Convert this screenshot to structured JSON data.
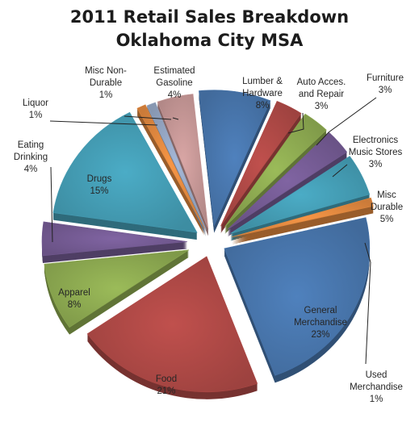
{
  "chart_data": {
    "type": "pie",
    "title_lines": [
      "2011 Retail Sales Breakdown",
      "Oklahoma City MSA"
    ],
    "slices": [
      {
        "label": "Lumber &\nHardware",
        "pct_label": "8%",
        "value": 8,
        "color": "#4f81bd"
      },
      {
        "label": "Auto Acces.\nand Repair",
        "pct_label": "3%",
        "value": 3,
        "color": "#c0504d"
      },
      {
        "label": "Furniture",
        "pct_label": "3%",
        "value": 3,
        "color": "#9bbb59"
      },
      {
        "label": "Electronics\nMusic Stores",
        "pct_label": "3%",
        "value": 3,
        "color": "#8064a2"
      },
      {
        "label": "Misc\nDurable",
        "pct_label": "5%",
        "value": 5,
        "color": "#4bacc6"
      },
      {
        "label": "Used\nMerchandise",
        "pct_label": "1%",
        "value": 1,
        "color": "#f79646"
      },
      {
        "label": "General\nMerchandise",
        "pct_label": "23%",
        "value": 23,
        "color": "#4f81bd"
      },
      {
        "label": "Food",
        "pct_label": "21%",
        "value": 21,
        "color": "#c0504d"
      },
      {
        "label": "Apparel",
        "pct_label": "8%",
        "value": 8,
        "color": "#9bbb59"
      },
      {
        "label": "Eating\nDrinking",
        "pct_label": "4%",
        "value": 4,
        "color": "#8064a2"
      },
      {
        "label": "Drugs",
        "pct_label": "15%",
        "value": 15,
        "color": "#4bacc6"
      },
      {
        "label": "Liquor",
        "pct_label": "1%",
        "value": 1,
        "color": "#f79646"
      },
      {
        "label": "Misc Non-\nDurable",
        "pct_label": "1%",
        "value": 1,
        "color": "#a5b8d8"
      },
      {
        "label": "Estimated\nGasoline",
        "pct_label": "4%",
        "value": 4,
        "color": "#d9a6a5"
      }
    ]
  }
}
